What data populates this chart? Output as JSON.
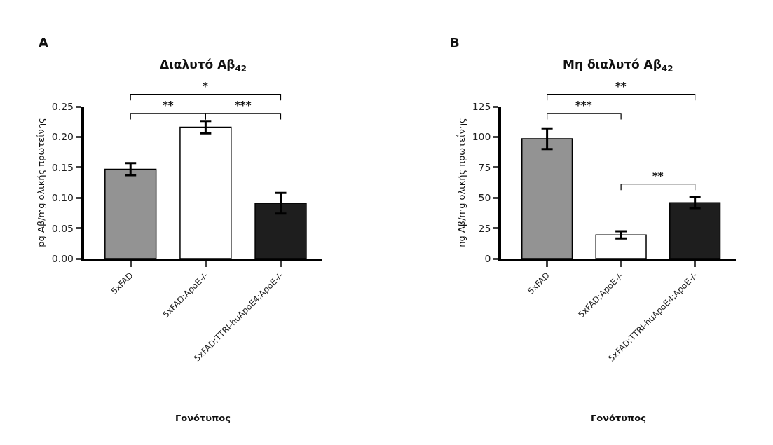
{
  "chart_data": [
    {
      "type": "bar",
      "title": "Διαλυτό Αβ$_{42}$",
      "xlabel": "Γονότυπος",
      "ylabel": "pg Aβ/mg ολικής πρωτεΐνης",
      "categories": [
        "5xFAD",
        "5xFAD;ApoE-/-",
        "5xFAD;TTRI-huApoE4;ApoE-/-"
      ],
      "values": [
        0.147,
        0.216,
        0.091
      ],
      "errors": [
        0.01,
        0.01,
        0.017
      ],
      "colors": [
        "#939393",
        "#ffffff",
        "#1e1e1e"
      ],
      "ylim": [
        0,
        0.25
      ],
      "yticks": [
        {
          "value": 0,
          "label": "0.00"
        },
        {
          "value": 0.05,
          "label": "0.05"
        },
        {
          "value": 0.1,
          "label": "0.10"
        },
        {
          "value": 0.15,
          "label": "0.15"
        },
        {
          "value": 0.2,
          "label": "0.20"
        },
        {
          "value": 0.25,
          "label": "0.25"
        }
      ],
      "annotations": [
        "A",
        "**",
        "***",
        "*"
      ]
    },
    {
      "type": "bar",
      "title": "Μη διαλυτό Αβ$_{42}$",
      "xlabel": "Γονότυπος",
      "ylabel": "ng Aβ/mg ολικής πρωτεΐνης",
      "categories": [
        "5xFAD",
        "5xFAD;ApoE-/-",
        "5xFAD;TTRI-huApoE4;ApoE-/-"
      ],
      "values": [
        98.5,
        19.5,
        46
      ],
      "errors": [
        8.5,
        3,
        4.5
      ],
      "colors": [
        "#939393",
        "#ffffff",
        "#1e1e1e"
      ],
      "ylim": [
        0,
        125
      ],
      "yticks": [
        0,
        25,
        50,
        75,
        100,
        125
      ],
      "annotations": [
        "B",
        "***",
        "**",
        "**"
      ]
    }
  ]
}
